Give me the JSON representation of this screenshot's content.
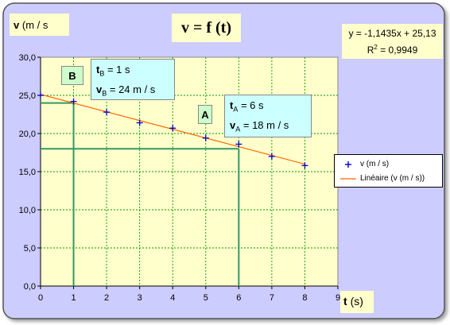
{
  "chart_data": {
    "type": "scatter",
    "title": "v = f (t)",
    "xlabel_var": "t",
    "xlabel_unit": "(s)",
    "ylabel_var": "v",
    "ylabel_unit": "(m / s",
    "xlim": [
      0,
      9
    ],
    "ylim": [
      0,
      30
    ],
    "x_ticks": [
      "0",
      "1",
      "2",
      "3",
      "4",
      "5",
      "6",
      "7",
      "8",
      "9"
    ],
    "y_ticks": [
      "0,0",
      "5,0",
      "10,0",
      "15,0",
      "20,0",
      "25,0",
      "30,0"
    ],
    "grid": true,
    "legend_placement": "right",
    "series": [
      {
        "name": "v (m / s)",
        "marker": "+",
        "color": "#0000cc",
        "x": [
          0,
          1,
          2,
          3,
          4,
          5,
          6,
          7,
          8
        ],
        "y": [
          25.0,
          24.2,
          22.8,
          21.4,
          20.7,
          19.4,
          18.6,
          17.0,
          15.8
        ]
      }
    ],
    "trendline": {
      "name": "Linéaire (v (m / s))",
      "color": "#ff6600",
      "slope": -1.1435,
      "intercept": 25.13,
      "x_range": [
        0,
        8
      ]
    },
    "equation": {
      "line1": "y = -1,1435x + 25,13",
      "r2_prefix": "R",
      "r2_sup": "2",
      "r2_suffix": " = 0,9949"
    },
    "points": [
      {
        "label": "B",
        "x": 1,
        "y": 24,
        "t_var": "t",
        "t_sub": "B",
        "t_text": " = 1 s",
        "v_var": "v",
        "v_sub": "B",
        "v_text": " = 24 m / s"
      },
      {
        "label": "A",
        "x": 6,
        "y": 18,
        "t_var": "t",
        "t_sub": "A",
        "t_text": " = 6 s",
        "v_var": "v",
        "v_sub": "A",
        "v_text": " = 18 m / s"
      }
    ],
    "colors": {
      "frame_bg": "#ccccff",
      "plot_bg": "#ffffcc",
      "grid": "#009900",
      "markers": "#0000cc",
      "construction_lines": "#339966",
      "label_bg": "#ffffcc",
      "annotation_bg": "#ccffff",
      "point_label_bg": "#ccffcc"
    }
  }
}
